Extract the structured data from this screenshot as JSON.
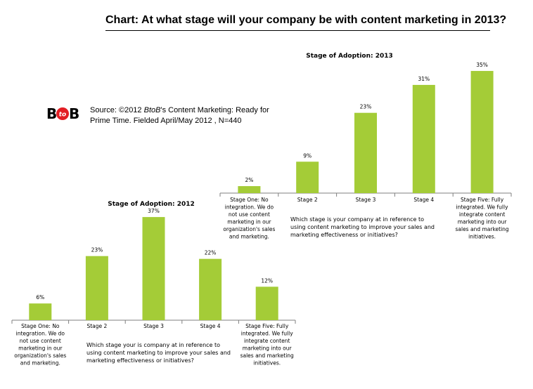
{
  "header": {
    "title": "Chart: At what stage will your company be with content marketing in 2013?"
  },
  "logo": {
    "text_left": "B",
    "text_mid": "to",
    "text_right": "B",
    "accent": "#e31e24"
  },
  "source": {
    "line1_prefix": "Source: ©2012 ",
    "line1_italic": "BtoB",
    "line1_suffix": "'s Content Marketing: Ready for",
    "line2": "Prime Time. Fielded April/May 2012 , N=440"
  },
  "colors": {
    "bar": "#a4cc37",
    "axis": "#7f7f7f"
  },
  "chart_data": [
    {
      "type": "bar",
      "title": "Stage of Adoption:  2013",
      "xlabel_lines": [
        "Which stage is your company at in reference to",
        "using content marketing to improve your sales and",
        "marketing effectiveness or initiatives?"
      ],
      "categories": [
        [
          "Stage One: No",
          "integration.  We do",
          "not use content",
          "marketing in our",
          "organization's sales",
          "and marketing."
        ],
        [
          "Stage 2"
        ],
        [
          "Stage 3"
        ],
        [
          "Stage 4"
        ],
        [
          "Stage Five: Fully",
          "integrated.  We fully",
          "integrate content",
          "marketing into our",
          "sales and marketing",
          "initiatives."
        ]
      ],
      "values": [
        2,
        9,
        23,
        31,
        35
      ],
      "labels": [
        "2%",
        "9%",
        "23%",
        "31%",
        "35%"
      ],
      "unit": "%"
    },
    {
      "type": "bar",
      "title": "Stage of Adoption:  2012",
      "xlabel_lines": [
        "Which stage your is company at in reference to",
        "using content marketing to improve your sales and",
        "marketing effectiveness or initiatives?"
      ],
      "categories": [
        [
          "Stage One: No",
          "integration.  We do",
          "not use content",
          "marketing in our",
          "organization's sales",
          "and marketing."
        ],
        [
          "Stage 2"
        ],
        [
          "Stage 3"
        ],
        [
          "Stage 4"
        ],
        [
          "Stage Five: Fully",
          "integrated.  We fully",
          "integrate content",
          "marketing into our",
          "sales and marketing",
          "initiatives."
        ]
      ],
      "values": [
        6,
        23,
        37,
        22,
        12
      ],
      "labels": [
        "6%",
        "23%",
        "37%",
        "22%",
        "12%"
      ],
      "unit": "%"
    }
  ]
}
